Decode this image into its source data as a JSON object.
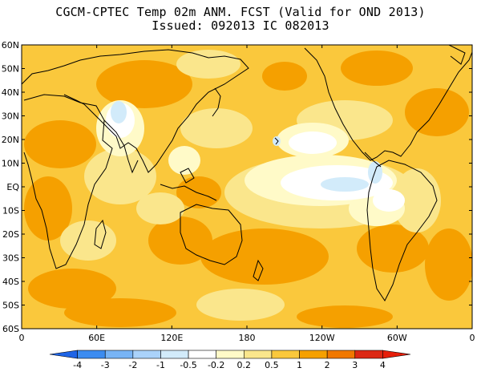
{
  "title_line1": "CGCM-CPTEC Temp 02m ANM. FCST  (Valid for OND 2013)",
  "title_line2": "Issued:  092013 IC 082013",
  "lat_labels": [
    "60N",
    "50N",
    "40N",
    "30N",
    "20N",
    "10N",
    "EQ",
    "10S",
    "20S",
    "30S",
    "40S",
    "50S",
    "60S"
  ],
  "lon_labels": [
    "0",
    "60E",
    "120E",
    "180",
    "120W",
    "60W",
    "0"
  ],
  "colorbar": {
    "ticks": [
      "-4",
      "-3",
      "-2",
      "-1",
      "-0.5",
      "-0.2",
      "0.2",
      "0.5",
      "1",
      "2",
      "3",
      "4"
    ],
    "colors": [
      "#1e64e6",
      "#3c8cf0",
      "#78b4f5",
      "#aad2fa",
      "#d2ebfa",
      "#ffffff",
      "#fffac8",
      "#fae68c",
      "#fac83c",
      "#f5a000",
      "#f07800",
      "#dc2814",
      "#e61e0a"
    ]
  },
  "colors": {
    "field_base": "#fac83c"
  }
}
